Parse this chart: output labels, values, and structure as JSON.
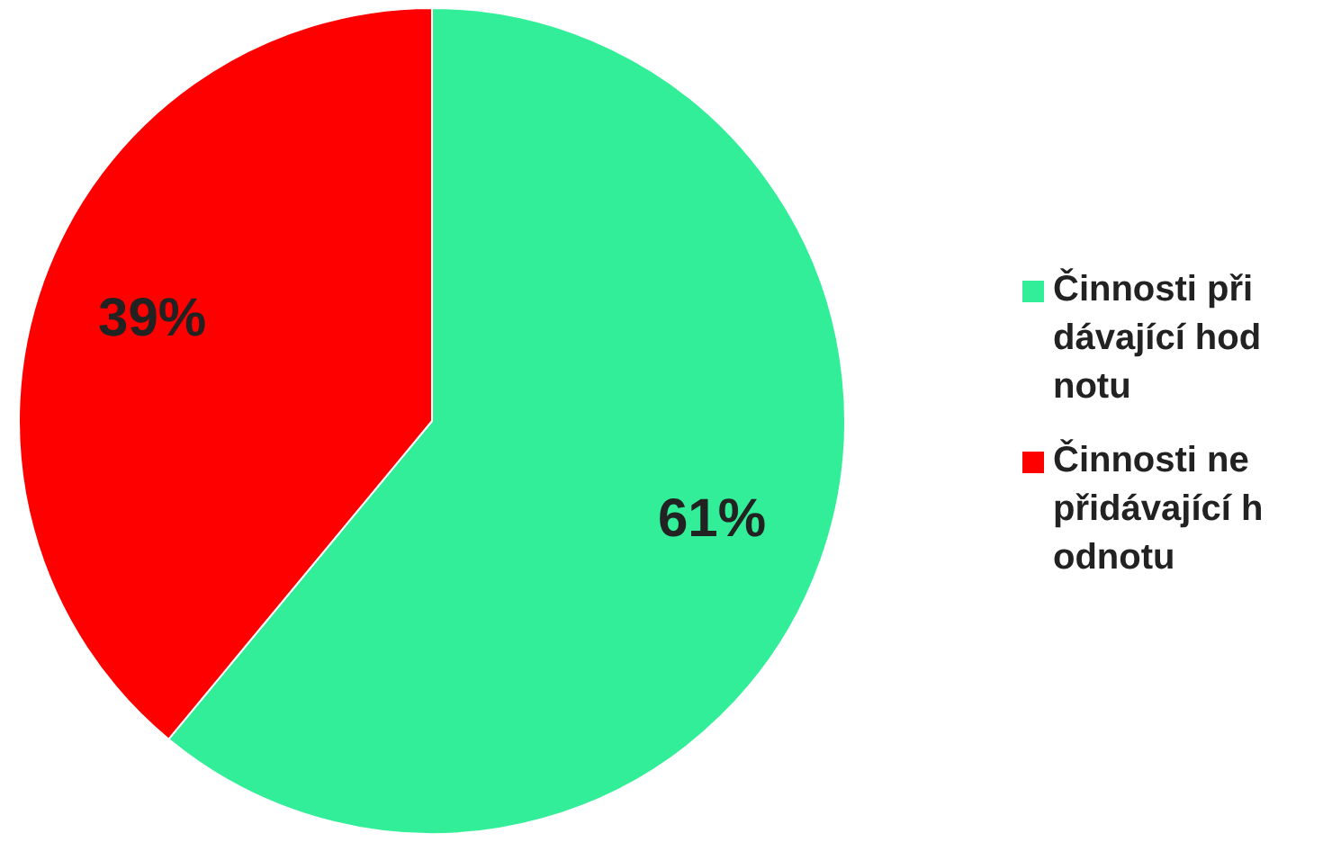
{
  "chart_data": {
    "type": "pie",
    "categories": [
      "Činnosti přidávající hodnotu",
      "Činnosti nepřidávající hodnotu"
    ],
    "values": [
      61,
      39
    ],
    "colors": [
      "#33ee99",
      "#ff0000"
    ],
    "value_labels": [
      "61%",
      "39%"
    ],
    "legend": "right"
  }
}
